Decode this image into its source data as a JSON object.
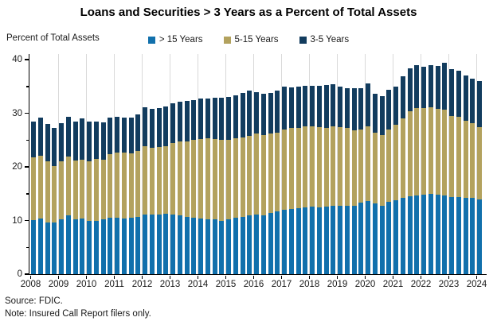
{
  "title": "Loans and Securities > 3 Years as a Percent of Total Assets",
  "y_caption": "Percent of Total Assets",
  "source": "Source: FDIC.",
  "note": "Note: Insured Call Report filers only.",
  "colors": {
    "gt15": "#1170ac",
    "mid": "#b3a25e",
    "short": "#123c5e",
    "gridline": "#d9d9d9",
    "axis": "#000000"
  },
  "legend": [
    {
      "label": "> 15 Years",
      "color_key": "gt15"
    },
    {
      "label": "5-15 Years",
      "color_key": "mid"
    },
    {
      "label": "3-5 Years",
      "color_key": "short"
    }
  ],
  "chart_data": {
    "type": "bar",
    "stacked": true,
    "frequency": "quarterly",
    "start_period": "2008Q1",
    "end_period": "2024Q1",
    "x_tick_labels": [
      "2008",
      "2009",
      "2010",
      "2011",
      "2012",
      "2013",
      "2014",
      "2015",
      "2016",
      "2017",
      "2018",
      "2019",
      "2020",
      "2021",
      "2022",
      "2023",
      "2024"
    ],
    "ylim": [
      0,
      40
    ],
    "y_major_ticks": [
      0,
      10,
      20,
      30,
      40
    ],
    "y_minor_ticks": [
      5,
      15,
      25,
      35
    ],
    "grid": "vertical-light-gray-per-year",
    "legend_position": "top-center",
    "series": [
      {
        "name": "> 15 Years",
        "color_key": "gt15",
        "values": [
          10.1,
          10.4,
          9.7,
          9.6,
          10.2,
          10.9,
          10.2,
          10.4,
          9.9,
          10.0,
          10.2,
          10.5,
          10.5,
          10.4,
          10.5,
          10.6,
          11.1,
          11.1,
          11.1,
          11.2,
          11.1,
          11.0,
          10.7,
          10.5,
          10.4,
          10.2,
          10.2,
          10.0,
          10.2,
          10.5,
          10.7,
          10.9,
          11.1,
          11.0,
          11.4,
          11.7,
          12.0,
          12.2,
          12.3,
          12.5,
          12.6,
          12.5,
          12.6,
          12.7,
          12.7,
          12.8,
          12.8,
          13.3,
          13.7,
          13.2,
          12.8,
          13.5,
          13.8,
          14.2,
          14.5,
          14.6,
          14.8,
          15.0,
          14.8,
          14.6,
          14.4,
          14.3,
          14.2,
          14.2,
          13.9
        ]
      },
      {
        "name": "5-15 Years",
        "color_key": "mid",
        "values": [
          11.7,
          11.7,
          11.3,
          10.6,
          10.8,
          11.1,
          11.0,
          10.9,
          11.2,
          11.5,
          11.1,
          11.9,
          12.1,
          12.2,
          12.0,
          12.3,
          12.8,
          12.5,
          12.6,
          12.7,
          13.3,
          13.7,
          14.1,
          14.5,
          14.8,
          15.1,
          15.0,
          15.0,
          14.8,
          14.8,
          14.8,
          14.9,
          15.1,
          15.0,
          14.8,
          14.7,
          15.0,
          15.0,
          15.0,
          15.0,
          14.9,
          14.9,
          14.7,
          14.8,
          14.7,
          14.4,
          14.0,
          13.7,
          13.8,
          13.2,
          13.2,
          13.5,
          14.0,
          14.8,
          15.8,
          16.3,
          16.1,
          16.1,
          16.0,
          16.1,
          15.1,
          15.1,
          14.4,
          14.0,
          13.5
        ]
      },
      {
        "name": "3-5 Years",
        "color_key": "short",
        "values": [
          6.7,
          7.1,
          7.0,
          7.0,
          7.1,
          7.3,
          7.3,
          7.8,
          7.3,
          7.0,
          7.0,
          6.8,
          6.7,
          6.6,
          6.7,
          6.9,
          7.2,
          7.2,
          7.2,
          7.3,
          7.5,
          7.4,
          7.5,
          7.4,
          7.5,
          7.5,
          7.7,
          7.9,
          8.1,
          8.1,
          8.3,
          8.4,
          7.7,
          7.7,
          7.6,
          7.8,
          7.9,
          7.6,
          7.6,
          7.6,
          7.6,
          7.7,
          7.9,
          7.9,
          7.5,
          7.5,
          7.8,
          7.7,
          8.1,
          7.3,
          7.2,
          7.4,
          7.1,
          7.9,
          8.1,
          8.0,
          7.8,
          7.8,
          8.0,
          8.7,
          8.7,
          8.5,
          8.4,
          8.3,
          8.6
        ]
      }
    ]
  }
}
